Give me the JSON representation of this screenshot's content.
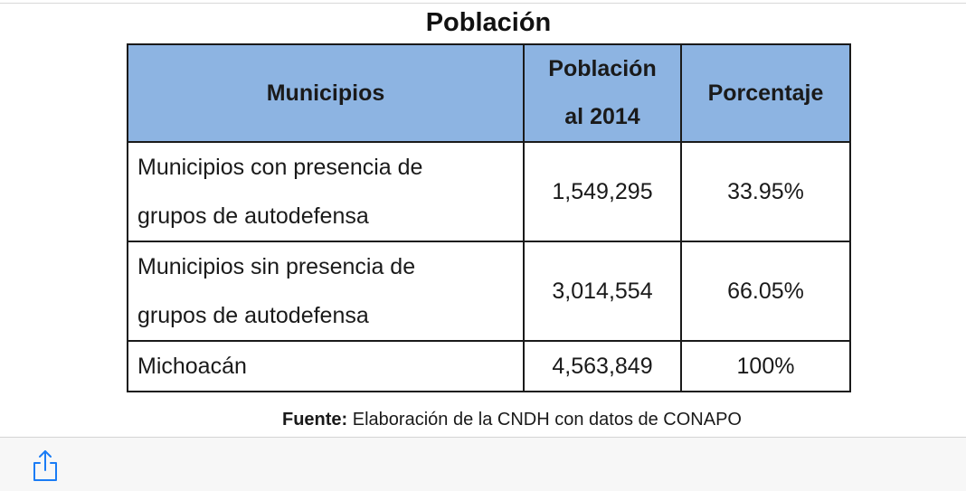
{
  "title": "Población",
  "table": {
    "headers": {
      "municipios": "Municipios",
      "poblacion_line1": "Población",
      "poblacion_line2": "al 2014",
      "porcentaje": "Porcentaje"
    },
    "rows": [
      {
        "name_line1": "Municipios con presencia de",
        "name_line2": "grupos de autodefensa",
        "poblacion": "1,549,295",
        "porcentaje": "33.95%"
      },
      {
        "name_line1": "Municipios sin presencia de",
        "name_line2": "grupos de autodefensa",
        "poblacion": "3,014,554",
        "porcentaje": "66.05%"
      },
      {
        "name": "Michoacán",
        "poblacion": "4,563,849",
        "porcentaje": "100%"
      }
    ]
  },
  "source": {
    "label": "Fuente:",
    "text": " Elaboración de la CNDH con datos de CONAPO"
  },
  "toolbar": {
    "share_icon": "share-icon",
    "icon_color": "#1a7cf5"
  }
}
